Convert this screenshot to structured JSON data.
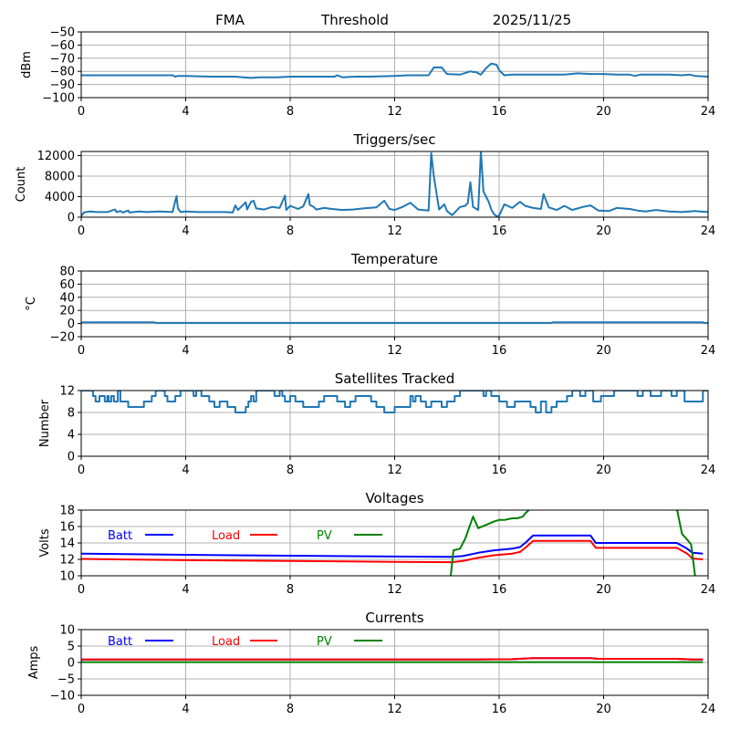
{
  "header": {
    "station": "FMA",
    "mode": "Threshold",
    "date": "2025/11/25"
  },
  "chart_data": [
    {
      "id": "signal",
      "type": "line",
      "title": "",
      "xlabel": "",
      "ylabel": "dBm",
      "xlim": [
        0,
        24
      ],
      "ylim": [
        -100,
        -50
      ],
      "xticks": [
        0,
        4,
        8,
        12,
        16,
        20,
        24
      ],
      "yticks": [
        -100,
        -90,
        -80,
        -70,
        -60,
        -50
      ],
      "ytick_labels": [
        "−100",
        "−90",
        "−80",
        "−70",
        "−60",
        "−50"
      ],
      "grid": true,
      "series": [
        {
          "name": "dBm",
          "color": "#1f77b4",
          "x": [
            0,
            1,
            2,
            3,
            3.5,
            3.6,
            3.7,
            4,
            5,
            5.9,
            6.2,
            6.5,
            6.8,
            7.5,
            8,
            8.5,
            9,
            9.7,
            9.8,
            10,
            10.5,
            11,
            12,
            12.5,
            13,
            13.3,
            13.5,
            13.8,
            14,
            14.5,
            14.9,
            15.0,
            15.1,
            15.3,
            15.5,
            15.7,
            15.9,
            16.0,
            16.2,
            16.5,
            17,
            17.5,
            18,
            18.5,
            19,
            19.5,
            20,
            20.5,
            21,
            21.2,
            21.4,
            22,
            22.5,
            23,
            23.3,
            23.5,
            24
          ],
          "y": [
            -83,
            -83,
            -83,
            -83,
            -83,
            -84,
            -83.5,
            -83.5,
            -84,
            -84,
            -84.5,
            -85,
            -84.5,
            -84.5,
            -84,
            -84,
            -84,
            -84,
            -83,
            -84.5,
            -84,
            -84,
            -83.5,
            -83,
            -83,
            -83,
            -77,
            -77,
            -82,
            -82.5,
            -80,
            -80.5,
            -80.5,
            -82.5,
            -77.5,
            -74,
            -75,
            -79,
            -83,
            -82.5,
            -82.5,
            -82.5,
            -82.5,
            -82.5,
            -81.5,
            -82,
            -82,
            -82.5,
            -82.5,
            -83.5,
            -82.5,
            -82.5,
            -82.5,
            -83,
            -82.5,
            -83.5,
            -84
          ]
        }
      ]
    },
    {
      "id": "triggers",
      "type": "line",
      "title": "Triggers/sec",
      "xlabel": "",
      "ylabel": "Count",
      "xlim": [
        0,
        24
      ],
      "ylim": [
        0,
        12800
      ],
      "xticks": [
        0,
        4,
        8,
        12,
        16,
        20,
        24
      ],
      "yticks": [
        0,
        4000,
        8000,
        12000
      ],
      "ytick_labels": [
        "0",
        "4000",
        "8000",
        "12000"
      ],
      "grid": true,
      "series": [
        {
          "name": "Count",
          "color": "#1f77b4",
          "x": [
            0,
            0.1,
            0.3,
            0.6,
            1.0,
            1.3,
            1.35,
            1.5,
            1.6,
            1.8,
            1.85,
            2.2,
            2.5,
            3.0,
            3.5,
            3.6,
            3.65,
            3.7,
            3.8,
            4.0,
            4.5,
            5.0,
            5.5,
            5.8,
            5.9,
            6.0,
            6.3,
            6.35,
            6.5,
            6.6,
            6.7,
            7.0,
            7.3,
            7.6,
            7.8,
            7.85,
            8.0,
            8.3,
            8.5,
            8.7,
            8.75,
            8.9,
            9.0,
            9.3,
            9.6,
            10.0,
            10.4,
            10.8,
            11.3,
            11.6,
            11.8,
            12.0,
            12.3,
            12.6,
            12.9,
            13.3,
            13.4,
            13.5,
            13.7,
            13.9,
            14.0,
            14.2,
            14.5,
            14.7,
            14.8,
            14.9,
            15.0,
            15.2,
            15.3,
            15.35,
            15.4,
            15.5,
            15.6,
            15.7,
            15.8,
            15.9,
            16.0,
            16.2,
            16.5,
            16.8,
            17.0,
            17.3,
            17.6,
            17.7,
            17.9,
            18.2,
            18.5,
            18.8,
            19.2,
            19.5,
            19.8,
            20.2,
            20.5,
            21.0,
            21.3,
            21.6,
            22.0,
            22.5,
            23.0,
            23.5,
            24.0
          ],
          "y": [
            200,
            900,
            1100,
            1000,
            1000,
            1500,
            1000,
            1200,
            900,
            1300,
            900,
            1100,
            1000,
            1100,
            1000,
            3200,
            4100,
            1800,
            1000,
            1100,
            1000,
            1000,
            1000,
            900,
            2300,
            1400,
            2900,
            1500,
            3000,
            3200,
            1700,
            1500,
            2000,
            1800,
            4200,
            1400,
            2200,
            1600,
            2100,
            4500,
            2400,
            2000,
            1500,
            1800,
            1600,
            1400,
            1500,
            1700,
            1900,
            3200,
            1600,
            1400,
            2000,
            2800,
            1500,
            1300,
            12500,
            8000,
            1500,
            2500,
            1200,
            400,
            2000,
            2200,
            2800,
            6800,
            2000,
            1400,
            12800,
            9000,
            5000,
            4000,
            3000,
            1500,
            600,
            200,
            300,
            2500,
            1800,
            3000,
            2200,
            1800,
            1600,
            4500,
            1900,
            1400,
            2200,
            1400,
            2000,
            2300,
            1300,
            1200,
            1800,
            1600,
            1300,
            1100,
            1400,
            1100,
            1000,
            1200,
            1000
          ]
        }
      ]
    },
    {
      "id": "temperature",
      "type": "line",
      "title": "Temperature",
      "xlabel": "",
      "ylabel": "°C",
      "xlim": [
        0,
        24
      ],
      "ylim": [
        -20,
        80
      ],
      "xticks": [
        0,
        4,
        8,
        12,
        16,
        20,
        24
      ],
      "yticks": [
        -20,
        0,
        20,
        40,
        60,
        80
      ],
      "ytick_labels": [
        "−20",
        "0",
        "20",
        "40",
        "60",
        "80"
      ],
      "grid": true,
      "series": [
        {
          "name": "Temperature",
          "color": "#1f77b4",
          "x": [
            0,
            2.8,
            2.85,
            18.0,
            18.05,
            23.8,
            23.85,
            24
          ],
          "y": [
            2,
            2,
            1,
            1,
            2,
            2,
            1,
            1
          ]
        }
      ]
    },
    {
      "id": "satellites",
      "type": "line",
      "title": "Satellites Tracked",
      "xlabel": "",
      "ylabel": "Number",
      "xlim": [
        0,
        24
      ],
      "ylim": [
        0,
        12
      ],
      "xticks": [
        0,
        4,
        8,
        12,
        16,
        20,
        24
      ],
      "yticks": [
        0,
        4,
        8,
        12
      ],
      "ytick_labels": [
        "0",
        "4",
        "8",
        "12"
      ],
      "grid": true,
      "series": [
        {
          "name": "Satellites",
          "color": "#1f77b4",
          "step": true,
          "x": [
            0,
            0.45,
            0.55,
            0.7,
            0.9,
            1.0,
            1.05,
            1.15,
            1.25,
            1.4,
            1.5,
            1.8,
            2.4,
            2.7,
            2.85,
            2.95,
            3.2,
            3.3,
            3.6,
            3.8,
            4.3,
            4.4,
            4.6,
            4.9,
            5.1,
            5.3,
            5.6,
            5.9,
            6.3,
            6.4,
            6.5,
            6.6,
            6.7,
            7.1,
            7.4,
            7.6,
            7.7,
            7.8,
            8.0,
            8.2,
            8.5,
            9.1,
            9.3,
            9.8,
            10.1,
            10.3,
            10.5,
            11.1,
            11.3,
            11.6,
            11.75,
            12.0,
            12.6,
            12.7,
            12.8,
            13.0,
            13.2,
            13.4,
            13.8,
            14.0,
            14.3,
            14.5,
            15.4,
            15.5,
            15.7,
            16.0,
            16.3,
            16.6,
            17.2,
            17.4,
            17.6,
            17.8,
            18.0,
            18.2,
            18.6,
            18.8,
            18.9,
            19.1,
            19.3,
            19.6,
            19.9,
            20.4,
            21.1,
            21.3,
            21.5,
            21.8,
            22.2,
            22.6,
            22.8,
            23.1,
            23.8,
            24.0
          ],
          "y": [
            12,
            11,
            10,
            11,
            10,
            11,
            10,
            11,
            10,
            12,
            10,
            9,
            10,
            11,
            12,
            12,
            11,
            10,
            11,
            12,
            11,
            12,
            11,
            10,
            9,
            10,
            9,
            8,
            9,
            10,
            11,
            10,
            12,
            12,
            11,
            12,
            11,
            10,
            11,
            10,
            9,
            10,
            11,
            10,
            9,
            10,
            11,
            10,
            9,
            8,
            8,
            9,
            11,
            10,
            11,
            10,
            9,
            10,
            9,
            10,
            11,
            12,
            11,
            12,
            11,
            10,
            9,
            10,
            9,
            8,
            10,
            8,
            9,
            10,
            11,
            12,
            12,
            11,
            12,
            10,
            11,
            12,
            12,
            11,
            12,
            11,
            12,
            11,
            12,
            10,
            12,
            12
          ]
        }
      ]
    },
    {
      "id": "voltages",
      "type": "line",
      "title": "Voltages",
      "xlabel": "",
      "ylabel": "Volts",
      "xlim": [
        0,
        24
      ],
      "ylim": [
        10,
        18
      ],
      "xticks": [
        0,
        4,
        8,
        12,
        16,
        20,
        24
      ],
      "yticks": [
        10,
        12,
        14,
        16,
        18
      ],
      "ytick_labels": [
        "10",
        "12",
        "14",
        "16",
        "18"
      ],
      "grid": true,
      "legend": [
        "Batt",
        "Load",
        "PV"
      ],
      "series": [
        {
          "name": "Batt",
          "color": "#0000ff",
          "x": [
            0,
            4,
            8,
            12,
            14.2,
            14.6,
            15.2,
            15.8,
            16.5,
            16.8,
            17.0,
            17.3,
            18,
            19.5,
            19.7,
            20,
            22,
            22.8,
            23.2,
            23.4,
            23.8
          ],
          "y": [
            12.7,
            12.55,
            12.45,
            12.35,
            12.3,
            12.4,
            12.8,
            13.1,
            13.3,
            13.5,
            14.0,
            14.9,
            14.9,
            14.9,
            14.0,
            14.0,
            14.0,
            14.0,
            13.3,
            12.8,
            12.7
          ]
        },
        {
          "name": "Load",
          "color": "#ff0000",
          "x": [
            0,
            4,
            8,
            12,
            14.2,
            14.6,
            15.2,
            15.8,
            16.5,
            16.8,
            17.0,
            17.3,
            18,
            19.5,
            19.7,
            20,
            22,
            22.8,
            23.2,
            23.4,
            23.8
          ],
          "y": [
            12.05,
            11.9,
            11.8,
            11.7,
            11.65,
            11.8,
            12.2,
            12.5,
            12.7,
            12.9,
            13.4,
            14.25,
            14.25,
            14.25,
            13.4,
            13.4,
            13.4,
            13.4,
            12.7,
            12.1,
            12.0
          ]
        },
        {
          "name": "PV",
          "color": "#008000",
          "x": [
            14.15,
            14.25,
            14.5,
            14.7,
            15.0,
            15.2,
            15.5,
            15.8,
            16.0,
            16.2,
            16.5,
            16.7,
            16.9,
            17.0,
            17.2,
            22.8,
            23.0,
            23.2,
            23.35,
            23.5
          ],
          "y": [
            10,
            13.1,
            13.3,
            14.5,
            17.2,
            15.8,
            16.2,
            16.6,
            16.8,
            16.8,
            17.0,
            17.0,
            17.2,
            17.6,
            18.2,
            18.2,
            15.1,
            14.4,
            13.8,
            10
          ]
        }
      ]
    },
    {
      "id": "currents",
      "type": "line",
      "title": "Currents",
      "xlabel": "",
      "ylabel": "Amps",
      "xlim": [
        0,
        24
      ],
      "ylim": [
        -10,
        10
      ],
      "xticks": [
        0,
        4,
        8,
        12,
        16,
        20,
        24
      ],
      "yticks": [
        -10,
        -5,
        0,
        5,
        10
      ],
      "ytick_labels": [
        "−10",
        "−5",
        "0",
        "5",
        "10"
      ],
      "grid": true,
      "legend": [
        "Batt",
        "Load",
        "PV"
      ],
      "series": [
        {
          "name": "Batt",
          "color": "#0000ff",
          "x": [
            0,
            15,
            16.5,
            17.3,
            19.5,
            19.8,
            22.8,
            23.4,
            23.8
          ],
          "y": [
            0.9,
            0.9,
            1.0,
            1.3,
            1.3,
            1.1,
            1.1,
            0.9,
            0.9
          ]
        },
        {
          "name": "Load",
          "color": "#ff0000",
          "x": [
            0,
            15,
            16.5,
            17.3,
            19.5,
            19.8,
            22.8,
            23.4,
            23.8
          ],
          "y": [
            0.9,
            0.9,
            1.0,
            1.3,
            1.3,
            1.1,
            1.1,
            0.9,
            0.9
          ]
        },
        {
          "name": "PV",
          "color": "#008000",
          "x": [
            0,
            23.8
          ],
          "y": [
            0.1,
            0.1
          ]
        }
      ]
    }
  ]
}
